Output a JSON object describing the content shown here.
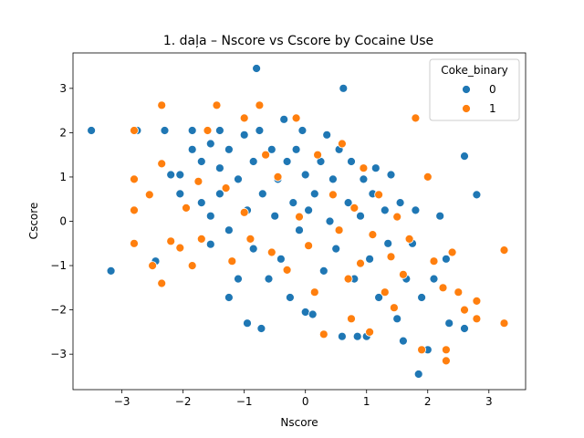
{
  "chart_data": {
    "type": "scatter",
    "title": "1. daļa – Nscore vs Cscore by Cocaine Use",
    "xlabel": "Nscore",
    "ylabel": "Cscore",
    "xlim": [
      -3.8,
      3.6
    ],
    "ylim": [
      -3.8,
      3.8
    ],
    "x_ticks": [
      -3,
      -2,
      -1,
      0,
      1,
      2,
      3
    ],
    "y_ticks": [
      -3,
      -2,
      -1,
      0,
      1,
      2,
      3
    ],
    "x_tick_labels": [
      "−3",
      "−2",
      "−1",
      "0",
      "1",
      "2",
      "3"
    ],
    "y_tick_labels": [
      "−3",
      "−2",
      "−1",
      "0",
      "1",
      "2",
      "3"
    ],
    "grid": false,
    "legend": {
      "title": "Coke_binary",
      "placement": "top-right",
      "entries": [
        "0",
        "1"
      ]
    },
    "series": [
      {
        "name": "0",
        "color": "#1f77b4",
        "points": [
          [
            -3.5,
            2.05
          ],
          [
            -3.18,
            -1.12
          ],
          [
            -2.75,
            2.05
          ],
          [
            -2.45,
            -0.9
          ],
          [
            -2.3,
            2.05
          ],
          [
            -2.2,
            1.05
          ],
          [
            -2.05,
            0.62
          ],
          [
            -2.05,
            1.05
          ],
          [
            -1.85,
            2.05
          ],
          [
            -1.85,
            1.62
          ],
          [
            -1.7,
            0.42
          ],
          [
            -1.7,
            1.35
          ],
          [
            -1.55,
            1.75
          ],
          [
            -1.55,
            0.12
          ],
          [
            -1.55,
            -0.52
          ],
          [
            -1.4,
            2.05
          ],
          [
            -1.4,
            1.2
          ],
          [
            -1.4,
            0.62
          ],
          [
            -1.25,
            -0.2
          ],
          [
            -1.25,
            1.62
          ],
          [
            -1.25,
            -1.72
          ],
          [
            -1.1,
            0.95
          ],
          [
            -1.1,
            -1.3
          ],
          [
            -1.0,
            1.95
          ],
          [
            -0.95,
            0.25
          ],
          [
            -0.95,
            -2.3
          ],
          [
            -0.85,
            1.35
          ],
          [
            -0.85,
            -0.62
          ],
          [
            -0.8,
            3.45
          ],
          [
            -0.75,
            2.05
          ],
          [
            -0.72,
            -2.42
          ],
          [
            -0.7,
            0.62
          ],
          [
            -0.6,
            -1.3
          ],
          [
            -0.55,
            1.62
          ],
          [
            -0.5,
            0.12
          ],
          [
            -0.45,
            0.95
          ],
          [
            -0.4,
            -0.85
          ],
          [
            -0.35,
            2.3
          ],
          [
            -0.3,
            1.35
          ],
          [
            -0.25,
            -1.72
          ],
          [
            -0.2,
            0.42
          ],
          [
            -0.15,
            1.62
          ],
          [
            -0.1,
            -0.2
          ],
          [
            -0.05,
            2.05
          ],
          [
            0.0,
            1.05
          ],
          [
            0.0,
            -2.05
          ],
          [
            0.05,
            0.25
          ],
          [
            0.12,
            -2.1
          ],
          [
            0.15,
            0.62
          ],
          [
            0.25,
            1.35
          ],
          [
            0.3,
            -1.12
          ],
          [
            0.35,
            1.95
          ],
          [
            0.4,
            0.0
          ],
          [
            0.45,
            0.95
          ],
          [
            0.5,
            -0.62
          ],
          [
            0.55,
            1.62
          ],
          [
            0.6,
            -2.6
          ],
          [
            0.62,
            3.0
          ],
          [
            0.7,
            0.42
          ],
          [
            0.75,
            1.35
          ],
          [
            0.8,
            -1.3
          ],
          [
            0.85,
            -2.6
          ],
          [
            0.9,
            0.12
          ],
          [
            0.95,
            0.95
          ],
          [
            1.0,
            -2.6
          ],
          [
            1.05,
            -0.85
          ],
          [
            1.1,
            0.62
          ],
          [
            1.15,
            1.2
          ],
          [
            1.2,
            -1.72
          ],
          [
            1.3,
            0.25
          ],
          [
            1.35,
            -0.5
          ],
          [
            1.4,
            1.05
          ],
          [
            1.5,
            -2.2
          ],
          [
            1.55,
            0.42
          ],
          [
            1.6,
            -2.7
          ],
          [
            1.65,
            -1.3
          ],
          [
            1.75,
            -0.5
          ],
          [
            1.8,
            0.25
          ],
          [
            1.85,
            -3.45
          ],
          [
            1.9,
            -1.72
          ],
          [
            2.0,
            -2.9
          ],
          [
            2.1,
            -1.3
          ],
          [
            2.2,
            0.12
          ],
          [
            2.3,
            -0.85
          ],
          [
            2.35,
            -2.3
          ],
          [
            2.6,
            1.47
          ],
          [
            2.6,
            -2.42
          ],
          [
            2.8,
            0.6
          ]
        ]
      },
      {
        "name": "1",
        "color": "#ff7f0e",
        "points": [
          [
            -2.8,
            2.05
          ],
          [
            -2.8,
            0.95
          ],
          [
            -2.8,
            0.25
          ],
          [
            -2.8,
            -0.5
          ],
          [
            -2.55,
            0.6
          ],
          [
            -2.5,
            -1.0
          ],
          [
            -2.35,
            2.62
          ],
          [
            -2.35,
            1.3
          ],
          [
            -2.35,
            -1.4
          ],
          [
            -2.2,
            -0.45
          ],
          [
            -2.05,
            -0.6
          ],
          [
            -1.95,
            0.3
          ],
          [
            -1.85,
            -1.0
          ],
          [
            -1.75,
            0.9
          ],
          [
            -1.7,
            -0.4
          ],
          [
            -1.6,
            2.05
          ],
          [
            -1.45,
            2.62
          ],
          [
            -1.3,
            0.75
          ],
          [
            -1.2,
            -0.9
          ],
          [
            -1.0,
            2.33
          ],
          [
            -1.0,
            0.2
          ],
          [
            -0.9,
            -0.4
          ],
          [
            -0.75,
            2.62
          ],
          [
            -0.65,
            1.5
          ],
          [
            -0.55,
            -0.7
          ],
          [
            -0.45,
            1.0
          ],
          [
            -0.3,
            -1.1
          ],
          [
            -0.15,
            2.33
          ],
          [
            -0.1,
            0.1
          ],
          [
            0.05,
            -0.55
          ],
          [
            0.15,
            -1.6
          ],
          [
            0.2,
            1.5
          ],
          [
            0.3,
            -2.55
          ],
          [
            0.45,
            0.6
          ],
          [
            0.55,
            -0.2
          ],
          [
            0.6,
            1.75
          ],
          [
            0.7,
            -1.3
          ],
          [
            0.8,
            0.3
          ],
          [
            0.9,
            -0.95
          ],
          [
            0.95,
            1.2
          ],
          [
            1.05,
            -2.5
          ],
          [
            1.1,
            -0.3
          ],
          [
            1.2,
            0.6
          ],
          [
            1.3,
            -1.6
          ],
          [
            1.4,
            -0.8
          ],
          [
            1.5,
            0.1
          ],
          [
            1.6,
            -1.2
          ],
          [
            1.7,
            -0.4
          ],
          [
            1.8,
            2.33
          ],
          [
            1.9,
            -2.9
          ],
          [
            2.0,
            1.0
          ],
          [
            2.1,
            -0.9
          ],
          [
            2.25,
            -1.5
          ],
          [
            2.3,
            -3.15
          ],
          [
            2.4,
            -0.7
          ],
          [
            2.5,
            -1.6
          ],
          [
            2.6,
            -2.0
          ],
          [
            2.8,
            -1.8
          ],
          [
            2.8,
            -2.2
          ],
          [
            3.25,
            -0.65
          ],
          [
            3.25,
            -2.3
          ],
          [
            2.3,
            -2.9
          ],
          [
            1.45,
            -1.95
          ],
          [
            0.75,
            -2.2
          ]
        ]
      }
    ]
  }
}
